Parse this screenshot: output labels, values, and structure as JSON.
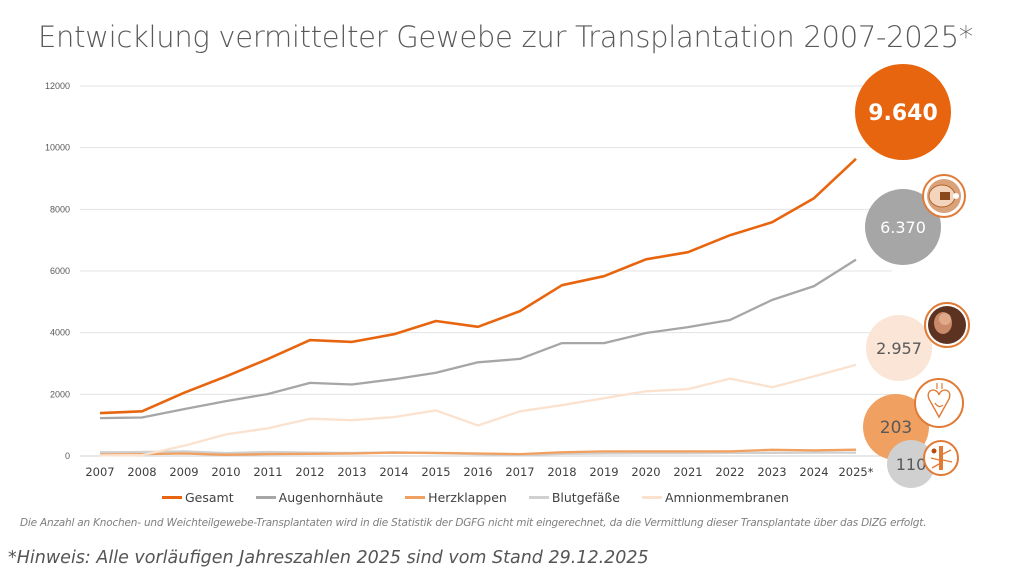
{
  "title": "Entwicklung vermittelter Gewebe zur Transplantation 2007-2025*",
  "chart_data": {
    "type": "line",
    "title": "Entwicklung vermittelter Gewebe zur Transplantation 2007-2025*",
    "xlabel": "",
    "ylabel": "",
    "ylim": [
      0,
      12000
    ],
    "yticks": [
      0,
      2000,
      4000,
      6000,
      8000,
      10000,
      12000
    ],
    "grid": true,
    "legend_position": "bottom",
    "categories": [
      "2007",
      "2008",
      "2009",
      "2010",
      "2011",
      "2012",
      "2013",
      "2014",
      "2015",
      "2016",
      "2017",
      "2018",
      "2019",
      "2020",
      "2021",
      "2022",
      "2023",
      "2024",
      "2025*"
    ],
    "series": [
      {
        "name": "Gesamt",
        "color": "#E8650F",
        "values": [
          1390,
          1450,
          2050,
          2580,
          3150,
          3760,
          3700,
          3950,
          4380,
          4190,
          4700,
          5540,
          5830,
          6380,
          6610,
          7160,
          7580,
          8360,
          9640
        ]
      },
      {
        "name": "Augenhornhäute",
        "color": "#A6A6A6",
        "values": [
          1230,
          1250,
          1520,
          1780,
          2010,
          2370,
          2320,
          2490,
          2700,
          3040,
          3150,
          3660,
          3660,
          3990,
          4180,
          4410,
          5060,
          5510,
          6370
        ]
      },
      {
        "name": "Herzklappen",
        "color": "#F0A060",
        "values": [
          50,
          60,
          80,
          40,
          60,
          70,
          80,
          110,
          100,
          80,
          60,
          120,
          150,
          150,
          150,
          150,
          200,
          180,
          203
        ]
      },
      {
        "name": "Blutgefäße",
        "color": "#D0D0D0",
        "values": [
          120,
          130,
          150,
          90,
          130,
          110,
          100,
          120,
          90,
          60,
          40,
          70,
          80,
          90,
          90,
          100,
          100,
          110,
          110
        ]
      },
      {
        "name": "Amnionmembranen",
        "color": "#FBE2CF",
        "values": [
          20,
          30,
          330,
          700,
          900,
          1210,
          1160,
          1260,
          1480,
          990,
          1450,
          1650,
          1870,
          2100,
          2170,
          2510,
          2230,
          2580,
          2957
        ]
      }
    ],
    "end_labels": [
      {
        "series": "Gesamt",
        "label": "9.640",
        "bubble_color": "#E8650F",
        "text_color": "#FFFFFF",
        "icon": "none"
      },
      {
        "series": "Augenhornhäute",
        "label": "6.370",
        "bubble_color": "#A6A6A6",
        "text_color": "#FFFFFF",
        "icon": "eye-icon"
      },
      {
        "series": "Amnionmembranen",
        "label": "2.957",
        "bubble_color": "#FBE5D6",
        "text_color": "#595959",
        "icon": "fetus-icon"
      },
      {
        "series": "Herzklappen",
        "label": "203",
        "bubble_color": "#F0A060",
        "text_color": "#595959",
        "icon": "heart-icon"
      },
      {
        "series": "Blutgefäße",
        "label": "110",
        "bubble_color": "#D0D0D0",
        "text_color": "#595959",
        "icon": "blood-vessel-icon"
      }
    ]
  },
  "legend": [
    {
      "label": "Gesamt",
      "color": "#E8650F"
    },
    {
      "label": "Augenhornhäute",
      "color": "#A6A6A6"
    },
    {
      "label": "Herzklappen",
      "color": "#F0A060"
    },
    {
      "label": "Blutgefäße",
      "color": "#D0D0D0"
    },
    {
      "label": "Amnionmembranen",
      "color": "#FBE2CF"
    }
  ],
  "footnote": "Die Anzahl an Knochen- und Weichteilgewebe-Transplantaten wird in die Statistik der DGFG nicht mit eingerechnet, da die Vermittlung dieser Transplantate über das DIZG erfolgt.",
  "hint": "*Hinweis: Alle vorläufigen Jahreszahlen 2025 sind vom Stand 29.12.2025"
}
